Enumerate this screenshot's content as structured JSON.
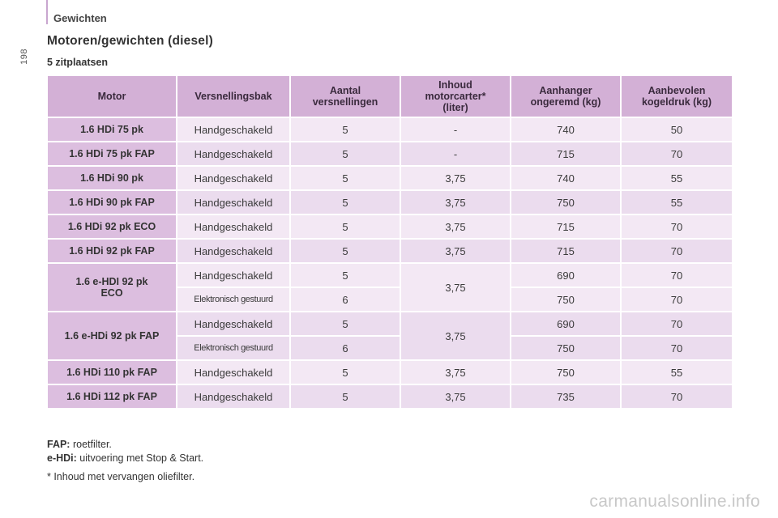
{
  "page_number": "198",
  "section_header": "Gewichten",
  "title": "Motoren/gewichten (diesel)",
  "subtitle": "5 zitplaatsen",
  "table": {
    "headers": {
      "motor": "Motor",
      "gearbox": "Versnellingsbak",
      "gears_line1": "Aantal",
      "gears_line2": "versnellingen",
      "oil_line1": "Inhoud",
      "oil_line2": "motorcarter*",
      "oil_line3": "(liter)",
      "trailer_line1": "Aanhanger",
      "trailer_line2": "ongeremd (kg)",
      "nose_line1": "Aanbevolen",
      "nose_line2": "kogeldruk (kg)"
    },
    "rows": [
      {
        "motor": "1.6 HDi 75 pk",
        "gearbox": "Handgeschakeld",
        "gears": "5",
        "oil": "-",
        "trailer": "740",
        "nose": "50"
      },
      {
        "motor": "1.6 HDi 75 pk FAP",
        "gearbox": "Handgeschakeld",
        "gears": "5",
        "oil": "-",
        "trailer": "715",
        "nose": "70"
      },
      {
        "motor": "1.6 HDi 90 pk",
        "gearbox": "Handgeschakeld",
        "gears": "5",
        "oil": "3,75",
        "trailer": "740",
        "nose": "55"
      },
      {
        "motor": "1.6 HDi 90 pk FAP",
        "gearbox": "Handgeschakeld",
        "gears": "5",
        "oil": "3,75",
        "trailer": "750",
        "nose": "55"
      },
      {
        "motor": "1.6 HDi 92 pk ECO",
        "gearbox": "Handgeschakeld",
        "gears": "5",
        "oil": "3,75",
        "trailer": "715",
        "nose": "70"
      },
      {
        "motor": "1.6 HDi 92 pk FAP",
        "gearbox": "Handgeschakeld",
        "gears": "5",
        "oil": "3,75",
        "trailer": "715",
        "nose": "70"
      }
    ],
    "group_ehdi": {
      "motor_line1": "1.6 e-HDI 92 pk",
      "motor_line2": "ECO",
      "oil": "3,75",
      "rows": [
        {
          "gearbox": "Handgeschakeld",
          "gears": "5",
          "trailer": "690",
          "nose": "70"
        },
        {
          "gearbox": "Elektronisch gestuurd",
          "gears": "6",
          "trailer": "750",
          "nose": "70"
        }
      ]
    },
    "group_ehdi_fap": {
      "motor": "1.6 e-HDi 92 pk FAP",
      "oil": "3,75",
      "rows": [
        {
          "gearbox": "Handgeschakeld",
          "gears": "5",
          "trailer": "690",
          "nose": "70"
        },
        {
          "gearbox": "Elektronisch gestuurd",
          "gears": "6",
          "trailer": "750",
          "nose": "70"
        }
      ]
    },
    "rows_tail": [
      {
        "motor": "1.6 HDi 110 pk FAP",
        "gearbox": "Handgeschakeld",
        "gears": "5",
        "oil": "3,75",
        "trailer": "750",
        "nose": "55"
      },
      {
        "motor": "1.6 HDi 112 pk FAP",
        "gearbox": "Handgeschakeld",
        "gears": "5",
        "oil": "3,75",
        "trailer": "735",
        "nose": "70"
      }
    ]
  },
  "footnotes": {
    "fap_term": "FAP:",
    "fap_text": " roetfilter.",
    "ehdi_term": "e-HDi:",
    "ehdi_text": " uitvoering met Stop & Start.",
    "oil_note": "* Inhoud met vervangen oliefilter."
  },
  "watermark": "carmanualsonline.info",
  "colors": {
    "header_bg": "#d3b0d6",
    "motor_bg": "#dcbedf",
    "row_light": "#f3e8f4",
    "row_dark": "#ebdcee",
    "accent_rule": "#c9a6cf"
  }
}
